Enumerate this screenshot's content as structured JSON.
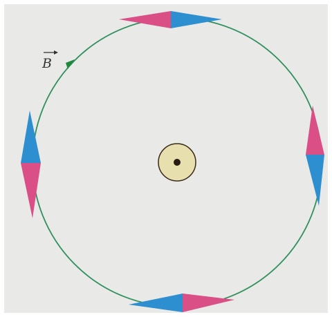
{
  "figure": {
    "field_symbol": "B",
    "colors": {
      "page": "#e9e9e7",
      "field_line": "#2f8f5d",
      "field_arrow": "#1f8a3c",
      "needle_north": "#d94f86",
      "needle_south": "#2d8fd0",
      "wire_fill": "#e8dfae",
      "wire_outline": "#3a2a1a",
      "wire_dot": "#2a1a12",
      "label": "#333333"
    },
    "wire": {
      "current_direction": "out of page"
    },
    "field_line": {
      "direction": "counter-clockwise"
    },
    "compass_needles": [
      {
        "position": "top",
        "north_points": "left"
      },
      {
        "position": "left",
        "north_points": "down"
      },
      {
        "position": "bottom",
        "north_points": "right"
      },
      {
        "position": "right",
        "north_points": "up"
      }
    ]
  }
}
